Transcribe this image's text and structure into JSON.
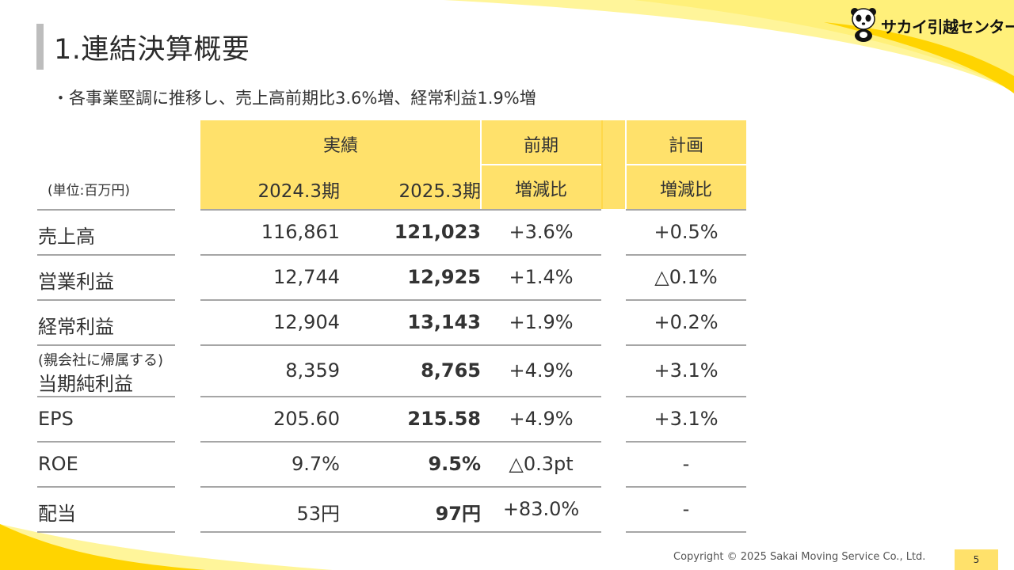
{
  "header": {
    "title": "1.連結決算概要",
    "subtitle": "・各事業堅調に推移し、売上高前期比3.6%増、経常利益1.9%増"
  },
  "logo": {
    "text": "サカイ引越センター",
    "icon": "panda-icon"
  },
  "table": {
    "unit_label": "(単位:百万円)",
    "group_headers": {
      "actual": "実績",
      "previous": "前期",
      "plan": "計画"
    },
    "col_headers": {
      "fy2024": "2024.3期",
      "fy2025": "2025.3期",
      "prev_change": "増減比",
      "plan_change": "増減比"
    },
    "rows": [
      {
        "label": "売上高",
        "fy2024": "116,861",
        "fy2025": "121,023",
        "prev": "+3.6%",
        "plan": "+0.5%"
      },
      {
        "label": "営業利益",
        "fy2024": "12,744",
        "fy2025": "12,925",
        "prev": "+1.4%",
        "plan": "△0.1%"
      },
      {
        "label": "経常利益",
        "fy2024": "12,904",
        "fy2025": "13,143",
        "prev": "+1.9%",
        "plan": "+0.2%"
      },
      {
        "label_small": "(親会社に帰属する)",
        "label": "当期純利益",
        "fy2024": "8,359",
        "fy2025": "8,765",
        "prev": "+4.9%",
        "plan": "+3.1%"
      },
      {
        "label": "EPS",
        "fy2024": "205.60",
        "fy2025": "215.58",
        "prev": "+4.9%",
        "plan": "+3.1%"
      },
      {
        "label": "ROE",
        "fy2024": "9.7%",
        "fy2025": "9.5%",
        "prev": "△0.3pt",
        "plan": "-"
      },
      {
        "label": "配当",
        "fy2024": "53円",
        "fy2025": "97円",
        "prev": "+83.0%",
        "plan": "-"
      }
    ]
  },
  "footer": {
    "copyright": "Copyright © 2025 Sakai Moving Service Co., Ltd.",
    "page": "5"
  },
  "colors": {
    "accent": "#ffe16b",
    "swoosh": "#ffd700",
    "rule": "#a6a6a6"
  }
}
